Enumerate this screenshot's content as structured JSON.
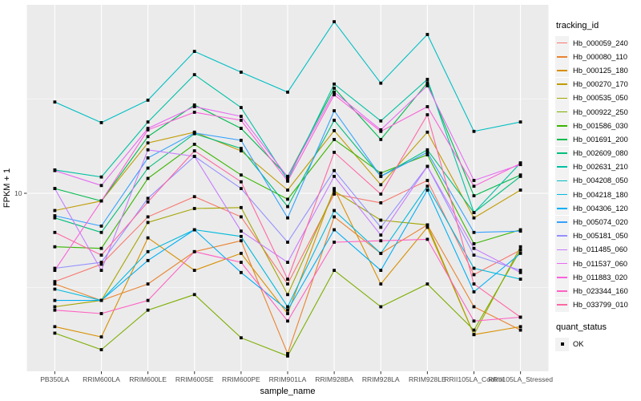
{
  "chart_data": {
    "type": "line",
    "xlabel": "sample_name",
    "ylabel": "FPKM + 1",
    "y_scale": "log10",
    "y_tick_labels": [
      "10"
    ],
    "y_tick_values": [
      10
    ],
    "y_minor_tick_values": [
      3.162,
      31.62
    ],
    "ylim_approx": [
      1.1,
      100
    ],
    "grid": "on",
    "panel_bg": "#EBEBEB",
    "grid_color": "#FFFFFF",
    "axis_text_color": "#4D4D4D",
    "point_color": "#000000",
    "legend_position": "right",
    "legend_title": "tracking_id",
    "categories": [
      "PB350LA",
      "RRIM600LA",
      "RRIM600LE",
      "RRIM600SE",
      "RRIM600PE",
      "RRIM901LA",
      "RRIM928BA",
      "RRIM928LA",
      "RRIM928LE",
      "RRII105LA_Control",
      "RRII105LA_Stressed"
    ],
    "series": [
      {
        "name": "Hb_000059_240",
        "color": "#F8766D",
        "values": [
          3.4,
          4.2,
          7.5,
          9.6,
          7.5,
          3.3,
          9.9,
          8.9,
          11.7,
          3.7,
          5.0
        ]
      },
      {
        "name": "Hb_000080_110",
        "color": "#EA8331",
        "values": [
          3.3,
          2.7,
          3.3,
          4.9,
          5.6,
          1.41,
          7.5,
          4.8,
          6.8,
          2.5,
          1.88
        ]
      },
      {
        "name": "Hb_000125_180",
        "color": "#D89000",
        "values": [
          1.96,
          1.73,
          5.8,
          3.9,
          4.8,
          2.3,
          10.6,
          3.3,
          6.6,
          1.78,
          1.96
        ]
      },
      {
        "name": "Hb_000270_170",
        "color": "#C09B00",
        "values": [
          8.1,
          9.1,
          18.5,
          21.1,
          16.8,
          10.4,
          21.5,
          11.1,
          21.1,
          7.4,
          10.4
        ]
      },
      {
        "name": "Hb_000535_050",
        "color": "#A3A500",
        "values": [
          2.5,
          2.7,
          7.0,
          8.3,
          8.4,
          2.9,
          10.3,
          7.2,
          6.8,
          1.78,
          5.2
        ]
      },
      {
        "name": "Hb_000922_250",
        "color": "#7CAE00",
        "values": [
          1.81,
          1.48,
          2.4,
          2.9,
          1.71,
          1.37,
          3.9,
          2.5,
          3.3,
          1.88,
          5.0
        ]
      },
      {
        "name": "Hb_001586_030",
        "color": "#39B600",
        "values": [
          5.2,
          5.1,
          12.0,
          18.2,
          12.5,
          9.3,
          19.3,
          12.8,
          16.0,
          5.4,
          6.4
        ]
      },
      {
        "name": "Hb_001691_200",
        "color": "#00BB4E",
        "values": [
          10.6,
          9.1,
          20.0,
          29.4,
          22.1,
          12.3,
          36.1,
          19.3,
          38.6,
          9.7,
          12.5
        ]
      },
      {
        "name": "Hb_002609_080",
        "color": "#00BF7D",
        "values": [
          7.4,
          6.2,
          13.6,
          20.7,
          17.3,
          8.5,
          24.4,
          12.3,
          17.0,
          7.9,
          12.3
        ]
      },
      {
        "name": "Hb_002631_210",
        "color": "#00C1A3",
        "values": [
          13.3,
          12.2,
          23.9,
          42.6,
          28.5,
          11.8,
          38.0,
          24.2,
          40.2,
          7.9,
          14.5
        ]
      },
      {
        "name": "Hb_004208_050",
        "color": "#00BFC4",
        "values": [
          30.5,
          23.7,
          31.2,
          56.6,
          43.9,
          34.4,
          81.3,
          38.4,
          69.6,
          21.3,
          23.9
        ]
      },
      {
        "name": "Hb_004218_180",
        "color": "#00BADE",
        "values": [
          3.1,
          2.7,
          4.9,
          6.4,
          5.9,
          2.5,
          8.1,
          4.8,
          10.9,
          4.0,
          3.5
        ]
      },
      {
        "name": "Hb_004306_120",
        "color": "#00B0F6",
        "values": [
          2.7,
          2.7,
          4.4,
          6.4,
          3.8,
          2.4,
          6.4,
          3.9,
          10.4,
          3.0,
          4.8
        ]
      },
      {
        "name": "Hb_005074_020",
        "color": "#35A2FF",
        "values": [
          7.6,
          6.7,
          15.4,
          20.9,
          19.1,
          7.4,
          27.4,
          12.3,
          16.5,
          6.2,
          6.3
        ]
      },
      {
        "name": "Hb_005181_050",
        "color": "#9590FF",
        "values": [
          4.0,
          4.3,
          9.4,
          15.7,
          10.6,
          5.5,
          13.2,
          6.6,
          13.9,
          4.7,
          3.9
        ]
      },
      {
        "name": "Hb_011485_060",
        "color": "#C77CFF",
        "values": [
          10.6,
          3.9,
          17.0,
          15.7,
          6.3,
          4.3,
          12.3,
          6.0,
          13.9,
          5.1,
          3.8
        ]
      },
      {
        "name": "Hb_011537_060",
        "color": "#E76BF3",
        "values": [
          13.2,
          11.0,
          22.1,
          28.8,
          25.6,
          12.2,
          34.4,
          21.7,
          37.2,
          11.7,
          14.2
        ]
      },
      {
        "name": "Hb_011883_020",
        "color": "#FA62DB",
        "values": [
          3.9,
          9.1,
          21.7,
          26.9,
          24.4,
          11.6,
          33.3,
          21.3,
          28.8,
          10.9,
          14.4
        ]
      },
      {
        "name": "Hb_023344_160",
        "color": "#FF61C3",
        "values": [
          2.4,
          2.3,
          2.7,
          4.9,
          4.3,
          2.1,
          5.5,
          5.6,
          5.7,
          2.1,
          2.2
        ]
      },
      {
        "name": "Hb_033799_010",
        "color": "#FF67A4",
        "values": [
          6.2,
          4.7,
          9.0,
          16.8,
          11.5,
          3.5,
          16.5,
          9.9,
          26.1,
          3.3,
          2.2
        ]
      }
    ],
    "quant_legend": {
      "title": "quant_status",
      "items": [
        {
          "label": "OK",
          "marker": "black-square"
        }
      ]
    }
  }
}
